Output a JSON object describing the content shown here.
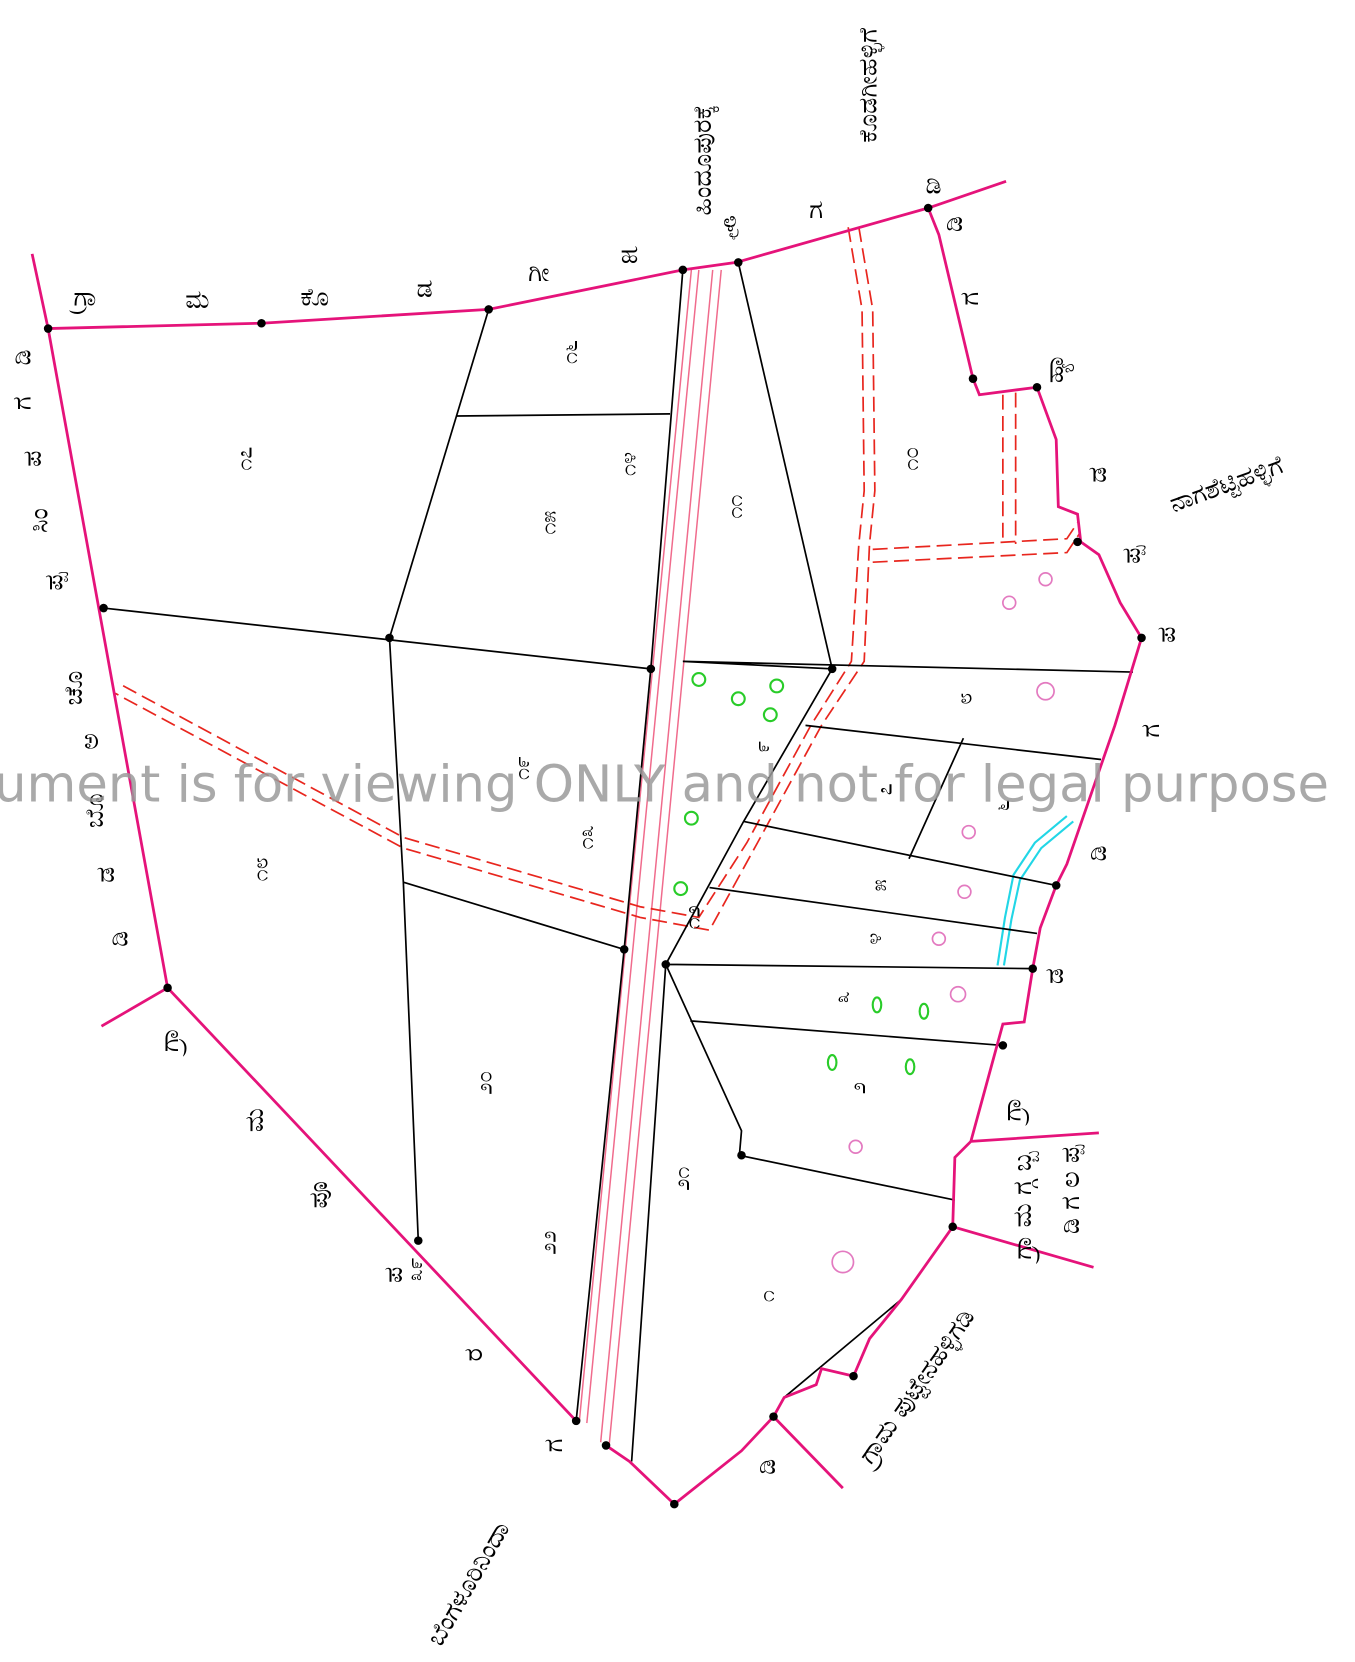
{
  "map": {
    "place_names": [
      "ಹಿಂದೂಪುರಕ್ಕೆ",
      "ಕೊಡಗೀಹಳ್ಳಿಗೆ",
      "ನಾಗಶೆಟ್ಟಿಹಳ್ಳಿಗೆ",
      "ಬೆಂಗಳೂರಿನಿಂದಾ",
      "ಗ್ರಾಮ ಪುಟ್ಟೇನಹಳ್ಳಿಗಡಿ"
    ],
    "top_boundary": [
      "ಗ್ರಾ",
      "ಮ",
      "ಕೊ",
      "ಡ",
      "ಗೀ",
      "ಹ",
      "ಳ್ಳಿ",
      "ಗ",
      "ಡಿ"
    ],
    "left_boundary": [
      "ಡಿ",
      "ಗ",
      "ಪ",
      "ಸಿಂ",
      "ಪ್ಪ",
      "ಚೊ",
      "ಅ",
      "ಬೊ",
      "ಡ",
      "ಡಿ"
    ],
    "bottom_left_boundary": [
      "ಗ್ರಾ",
      "ಮ",
      "ಪೂ",
      "ಪ",
      "ರ",
      "ಗ"
    ],
    "right_boundary": [
      "ಡಿ",
      "ಗ",
      "ಹ್ಯಾ",
      "ಡ",
      "ಪ್ಪ",
      "ಪ",
      "ಗ",
      "ಡಿ",
      "ಡ",
      "ಗ್ರಾ",
      "ಡಿ"
    ],
    "right_block": [
      "ಡಿ ಗ ಲ ಪ್ಪ",
      "ಗ್ರಾ ಮ ಗ್ಗ ಬ್ಬ"
    ],
    "survey_numbers": [
      "೧೬",
      "೧೭",
      "೧೪",
      "೧೫",
      "೧೧",
      "೧೦",
      "೧೮",
      "೧೯",
      "೧೩",
      "೧೨",
      "೨೦",
      "೨೧",
      "೨೨",
      "೧",
      "೨",
      "೩",
      "೪",
      "೫",
      "೬",
      "೭",
      "೮",
      "೯",
      "೩೯"
    ],
    "watermark": "ument is for viewing ONLY and not for legal purpose"
  }
}
